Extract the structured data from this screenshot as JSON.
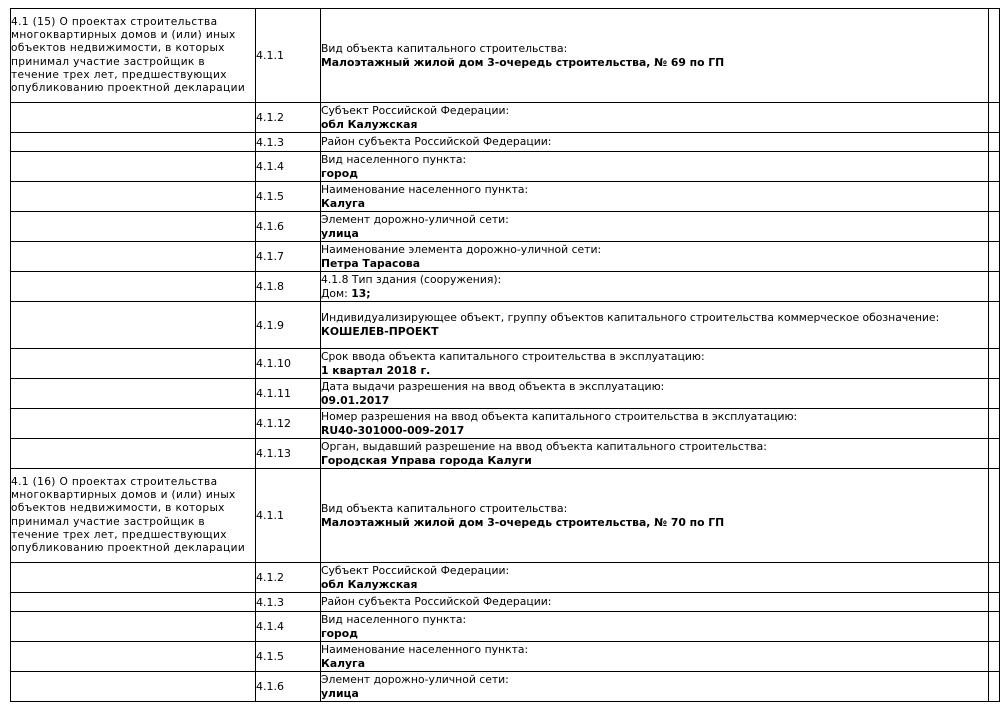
{
  "colors": {
    "text": "#000000",
    "background": "#ffffff",
    "border": "#000000"
  },
  "table": {
    "sections": [
      {
        "description": "4.1 (15) О проектах строительства многоквартирных домов и (или) иных объектов недвижимости, в которых принимал участие застройщик в течение трех лет, предшествующих опубликованию проектной декларации",
        "rows": [
          {
            "num": "4.1.1",
            "label": "Вид объекта капитального строительства:",
            "value": "Малоэтажный жилой дом 3-очередь строительства, № 69 по ГП"
          },
          {
            "num": "4.1.2",
            "label": "Субъект Российской Федерации:",
            "value": "обл Калужская"
          },
          {
            "num": "4.1.3",
            "label": "Район субъекта Российской Федерации:"
          },
          {
            "num": "4.1.4",
            "label": "Вид населенного пункта:",
            "value": "город"
          },
          {
            "num": "4.1.5",
            "label": "Наименование населенного пункта:",
            "value": "Калуга"
          },
          {
            "num": "4.1.6",
            "label": "Элемент дорожно-уличной сети:",
            "value": "улица"
          },
          {
            "num": "4.1.7",
            "label": "Наименование элемента дорожно-уличной сети:",
            "value": "Петра Тарасова"
          },
          {
            "num": "4.1.8",
            "label": "4.1.8 Тип здания (сооружения):",
            "value_prefix": "Дом: ",
            "value": "13;"
          },
          {
            "num": "4.1.9",
            "label": "Индивидуализирующее объект, группу объектов капитального строительства коммерческое обозначение:",
            "value": "КОШЕЛЕВ-ПРОЕКТ"
          },
          {
            "num": "4.1.10",
            "label": "Срок ввода объекта капитального строительства в эксплуатацию:",
            "value": "1 квартал 2018 г."
          },
          {
            "num": "4.1.11",
            "label": "Дата выдачи разрешения на ввод объекта в эксплуатацию:",
            "value": "09.01.2017"
          },
          {
            "num": "4.1.12",
            "label": "Номер разрешения на ввод объекта капитального строительства в эксплуатацию:",
            "value": "RU40-301000-009-2017"
          },
          {
            "num": "4.1.13",
            "label": "Орган, выдавший разрешение на ввод объекта капитального строительства:",
            "value": "Городская Управа города Калуги"
          }
        ]
      },
      {
        "description": "4.1 (16) О проектах строительства многоквартирных домов и (или) иных объектов недвижимости, в которых принимал участие застройщик в течение трех лет, предшествующих опубликованию проектной декларации",
        "rows": [
          {
            "num": "4.1.1",
            "label": "Вид объекта капитального строительства:",
            "value": "Малоэтажный жилой дом 3-очередь строительства, № 70 по ГП"
          },
          {
            "num": "4.1.2",
            "label": "Субъект Российской Федерации:",
            "value": "обл Калужская"
          },
          {
            "num": "4.1.3",
            "label": "Район субъекта Российской Федерации:"
          },
          {
            "num": "4.1.4",
            "label": "Вид населенного пункта:",
            "value": "город"
          },
          {
            "num": "4.1.5",
            "label": "Наименование населенного пункта:",
            "value": "Калуга"
          },
          {
            "num": "4.1.6",
            "label": "Элемент дорожно-уличной сети:",
            "value": "улица"
          }
        ]
      }
    ]
  }
}
